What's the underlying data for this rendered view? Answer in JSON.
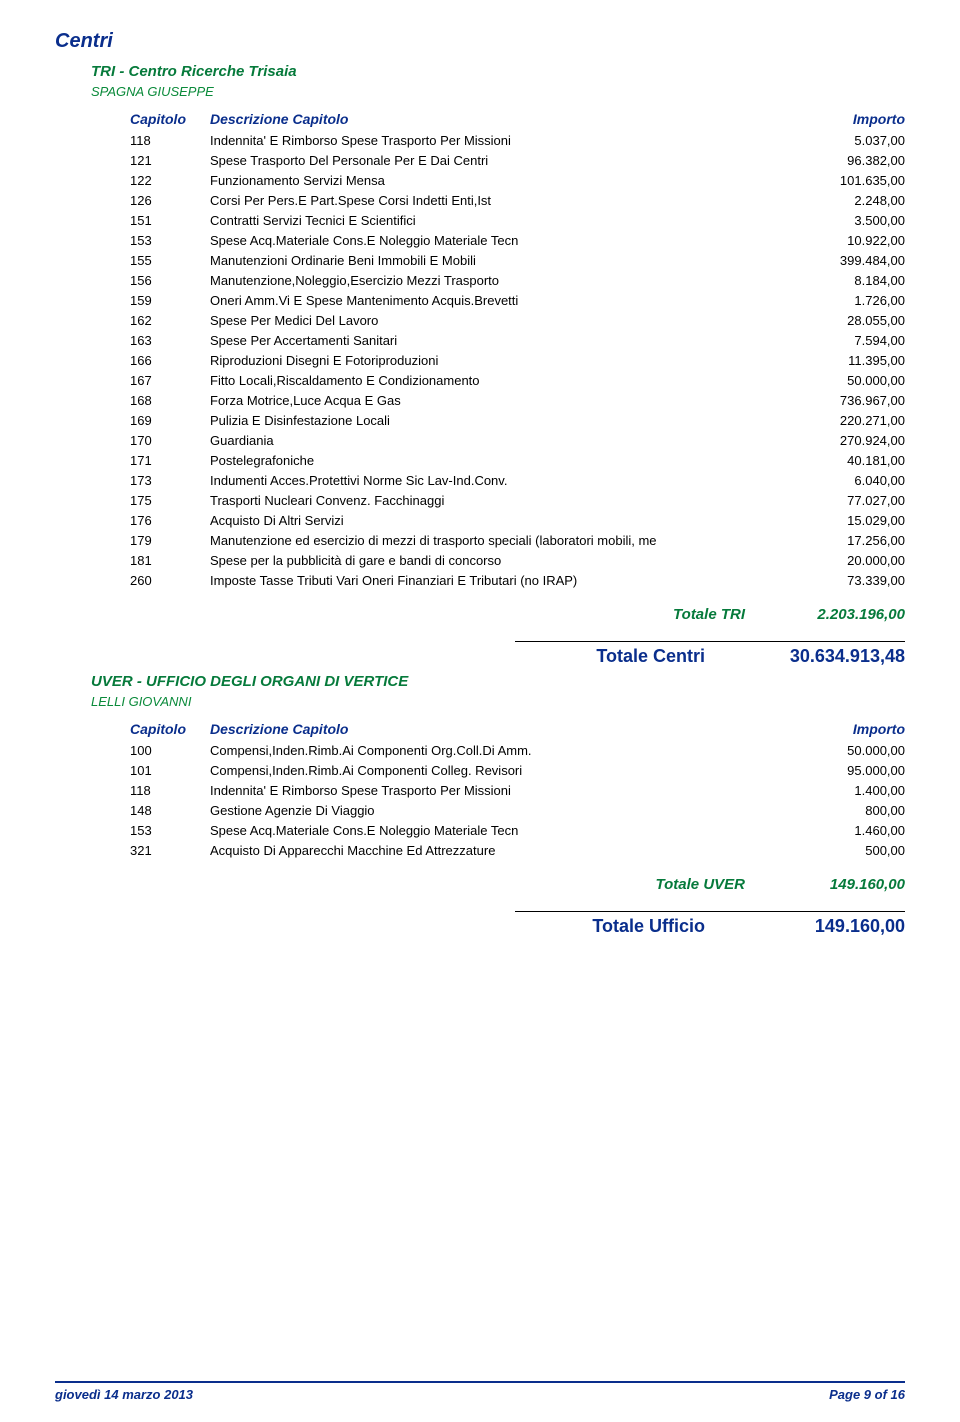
{
  "colors": {
    "heading_blue": "#0a2e8c",
    "sub_green": "#067a3b",
    "person_green": "#0a8a3a",
    "totale_green": "#067a3b",
    "grand_blue": "#0a2e8c",
    "footer_line": "#0a2e8c",
    "footer_text": "#0a2e8c",
    "text": "#000000"
  },
  "section1": {
    "title": "Centri",
    "subtitle": "TRI - Centro Ricerche Trisaia",
    "person": "SPAGNA GIUSEPPE",
    "headers": {
      "c1": "Capitolo",
      "c2": "Descrizione Capitolo",
      "c3": "Importo"
    },
    "rows": [
      {
        "c1": "118",
        "c2": "Indennita' E Rimborso Spese Trasporto Per Missioni",
        "c3": "5.037,00"
      },
      {
        "c1": "121",
        "c2": "Spese Trasporto Del Personale Per E Dai Centri",
        "c3": "96.382,00"
      },
      {
        "c1": "122",
        "c2": "Funzionamento Servizi Mensa",
        "c3": "101.635,00"
      },
      {
        "c1": "126",
        "c2": "Corsi Per Pers.E Part.Spese Corsi Indetti Enti,Ist",
        "c3": "2.248,00"
      },
      {
        "c1": "151",
        "c2": "Contratti Servizi Tecnici E Scientifici",
        "c3": "3.500,00"
      },
      {
        "c1": "153",
        "c2": "Spese Acq.Materiale Cons.E Noleggio Materiale Tecn",
        "c3": "10.922,00"
      },
      {
        "c1": "155",
        "c2": "Manutenzioni Ordinarie Beni Immobili E Mobili",
        "c3": "399.484,00"
      },
      {
        "c1": "156",
        "c2": "Manutenzione,Noleggio,Esercizio Mezzi Trasporto",
        "c3": "8.184,00"
      },
      {
        "c1": "159",
        "c2": "Oneri Amm.Vi E Spese Mantenimento Acquis.Brevetti",
        "c3": "1.726,00"
      },
      {
        "c1": "162",
        "c2": "Spese Per Medici Del Lavoro",
        "c3": "28.055,00"
      },
      {
        "c1": "163",
        "c2": "Spese Per Accertamenti Sanitari",
        "c3": "7.594,00"
      },
      {
        "c1": "166",
        "c2": "Riproduzioni Disegni E Fotoriproduzioni",
        "c3": "11.395,00"
      },
      {
        "c1": "167",
        "c2": "Fitto Locali,Riscaldamento E Condizionamento",
        "c3": "50.000,00"
      },
      {
        "c1": "168",
        "c2": "Forza Motrice,Luce Acqua E Gas",
        "c3": "736.967,00"
      },
      {
        "c1": "169",
        "c2": "Pulizia E Disinfestazione Locali",
        "c3": "220.271,00"
      },
      {
        "c1": "170",
        "c2": "Guardiania",
        "c3": "270.924,00"
      },
      {
        "c1": "171",
        "c2": "Postelegrafoniche",
        "c3": "40.181,00"
      },
      {
        "c1": "173",
        "c2": "Indumenti Acces.Protettivi Norme Sic Lav-Ind.Conv.",
        "c3": "6.040,00"
      },
      {
        "c1": "175",
        "c2": "Trasporti Nucleari Convenz. Facchinaggi",
        "c3": "77.027,00"
      },
      {
        "c1": "176",
        "c2": "Acquisto Di Altri Servizi",
        "c3": "15.029,00"
      },
      {
        "c1": "179",
        "c2": "Manutenzione ed esercizio di mezzi di trasporto speciali (laboratori mobili, me",
        "c3": "17.256,00"
      },
      {
        "c1": "181",
        "c2": "Spese per la pubblicità di gare e bandi di concorso",
        "c3": "20.000,00"
      },
      {
        "c1": "260",
        "c2": "Imposte Tasse Tributi Vari Oneri Finanziari E Tributari (no IRAP)",
        "c3": "73.339,00"
      }
    ],
    "totale": {
      "label": "Totale TRI",
      "value": "2.203.196,00"
    },
    "grand": {
      "label": "Totale Centri",
      "value": "30.634.913,48"
    }
  },
  "section2": {
    "subtitle": "UVER - UFFICIO DEGLI ORGANI DI VERTICE",
    "person": "LELLI GIOVANNI",
    "headers": {
      "c1": "Capitolo",
      "c2": "Descrizione Capitolo",
      "c3": "Importo"
    },
    "rows": [
      {
        "c1": "100",
        "c2": "Compensi,Inden.Rimb.Ai Componenti Org.Coll.Di Amm.",
        "c3": "50.000,00"
      },
      {
        "c1": "101",
        "c2": "Compensi,Inden.Rimb.Ai Componenti Colleg. Revisori",
        "c3": "95.000,00"
      },
      {
        "c1": "118",
        "c2": "Indennita' E Rimborso Spese Trasporto Per Missioni",
        "c3": "1.400,00"
      },
      {
        "c1": "148",
        "c2": "Gestione  Agenzie Di Viaggio",
        "c3": "800,00"
      },
      {
        "c1": "153",
        "c2": "Spese Acq.Materiale Cons.E Noleggio Materiale Tecn",
        "c3": "1.460,00"
      },
      {
        "c1": "321",
        "c2": "Acquisto Di Apparecchi Macchine Ed Attrezzature",
        "c3": "500,00"
      }
    ],
    "totale": {
      "label": "Totale UVER",
      "value": "149.160,00"
    },
    "grand": {
      "label": "Totale Ufficio",
      "value": "149.160,00"
    }
  },
  "footer": {
    "left": "giovedì 14 marzo 2013",
    "right": "Page 9 of 16"
  }
}
